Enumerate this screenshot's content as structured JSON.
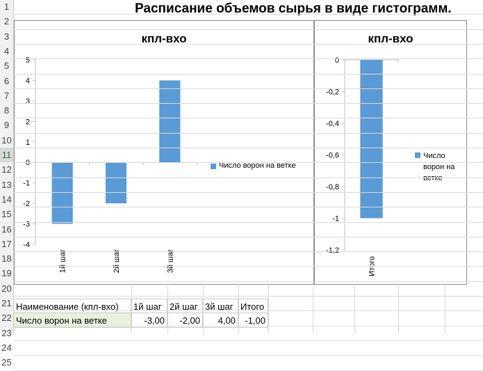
{
  "sheet": {
    "title": "Расписание объемов сырья в виде гистограмм.",
    "row_numbers": [
      "1",
      "2",
      "3",
      "4",
      "5",
      "6",
      "7",
      "8",
      "9",
      "10",
      "11",
      "12",
      "13",
      "14",
      "15",
      "16",
      "17",
      "18",
      "19",
      "20",
      "21",
      "22",
      "23",
      "24",
      "25"
    ],
    "selected_row": "11"
  },
  "table": {
    "headers": [
      "Наименование (кпл-вхо)",
      "1й  шаг",
      "2й  шаг",
      "3й  шаг",
      "Итого"
    ],
    "rows": [
      [
        "Число ворон на ветке",
        "-3,00",
        "-2,00",
        "4,00",
        "-1,00"
      ]
    ]
  },
  "chart_data": [
    {
      "type": "bar",
      "title": "кпл-вхо",
      "categories": [
        "1й  шаг",
        "2й  шаг",
        "3й  шаг"
      ],
      "series": [
        {
          "name": "Число ворон на ветке",
          "values": [
            -3,
            -2,
            4
          ],
          "color": "#5b9bd5"
        }
      ],
      "ylim": [
        -4,
        5
      ],
      "yticks": [
        "5",
        "4",
        "3",
        "2",
        "1",
        "0",
        "-1",
        "-2",
        "-3",
        "-4"
      ],
      "legend": "right",
      "legend_label": "Число ворон на ветке",
      "grid": false
    },
    {
      "type": "bar",
      "title": "кпл-вхо",
      "categories": [
        "Итого"
      ],
      "series": [
        {
          "name": "Число ворон на ветке",
          "values": [
            -1
          ],
          "color": "#5b9bd5"
        }
      ],
      "ylim": [
        -1.2,
        0
      ],
      "yticks": [
        "0",
        "-0,2",
        "-0,4",
        "-0,6",
        "-0,8",
        "-1",
        "-1,2"
      ],
      "legend": "right",
      "legend_lines": [
        "Число",
        "ворон на",
        "ветке"
      ],
      "grid": false
    }
  ]
}
